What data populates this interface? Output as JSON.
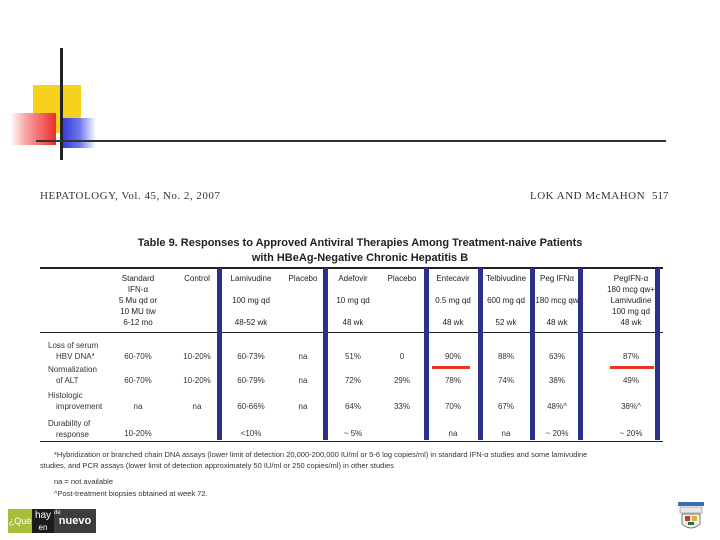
{
  "header": {
    "journal": "HEPATOLOGY, Vol. 45, No. 2, 2007",
    "authors": "LOK AND McMAHON",
    "page": "517"
  },
  "table": {
    "title_line1": "Table 9. Responses to Approved Antiviral Therapies Among Treatment-naive Patients",
    "title_line2": "with HBeAg-Negative Chronic Hepatitis B",
    "columns": [
      {
        "name": "Standard",
        "lines": [
          "IFN-α",
          "5 Mu qd or",
          "10 MU tiw",
          "6-12 mo"
        ]
      },
      {
        "name": "Control",
        "lines": []
      },
      {
        "name": "Lamivudine",
        "lines": [
          "100 mg qd",
          "48-52 wk"
        ]
      },
      {
        "name": "Placebo",
        "lines": []
      },
      {
        "name": "Adefovir",
        "lines": [
          "10 mg qd",
          "48 wk"
        ]
      },
      {
        "name": "Placebo",
        "lines": []
      },
      {
        "name": "Entecavir",
        "lines": [
          "0.5 mg qd",
          "48 wk"
        ]
      },
      {
        "name": "Telbivudine",
        "lines": [
          "600 mg qd",
          "52 wk"
        ]
      },
      {
        "name": "Peg IFNα",
        "lines": [
          "180 mcg qw",
          "48 wk"
        ]
      },
      {
        "name": "PegIFN-α",
        "lines": [
          "180 mcg qw+",
          "Lamivudine",
          "100 mg qd",
          "48 wk"
        ]
      }
    ],
    "rows": [
      {
        "label": [
          "Loss of serum",
          "HBV DNA*"
        ],
        "values": [
          "60-70%",
          "10-20%",
          "60-73%",
          "na",
          "51%",
          "0",
          "90%",
          "88%",
          "63%",
          "87%"
        ]
      },
      {
        "label": [
          "Normalization",
          "of ALT"
        ],
        "values": [
          "60-70%",
          "10-20%",
          "60-79%",
          "na",
          "72%",
          "29%",
          "78%",
          "74%",
          "38%",
          "49%"
        ]
      },
      {
        "label": [
          "Histologic",
          "improvement"
        ],
        "values": [
          "na",
          "na",
          "60-66%",
          "na",
          "64%",
          "33%",
          "70%",
          "67%",
          "48%^",
          "38%^"
        ]
      },
      {
        "label": [
          "Durability of",
          "response"
        ],
        "values": [
          "10-20%",
          "",
          "<10%",
          "",
          "~ 5%",
          "",
          "na",
          "na",
          "~ 20%",
          "~ 20%"
        ]
      }
    ],
    "footnotes": [
      "*Hybridization or branched chain DNA assays (lower limit of detection 20,000-200,000 IU/ml or 5-6 log copies/ml) in standard IFN-α studies and some lamivudine",
      "studies, and PCR assays (lower limit of detection approximately 50 IU/ml or 250 copies/ml) in other studies",
      "na = not available",
      "^Post-treatment biopsies obtained at week 72."
    ]
  },
  "logo": {
    "left": "¿Qué",
    "mid_top": "hay",
    "mid_bottom": "en",
    "right": "nuevo",
    "mid_sup": "de"
  },
  "colors": {
    "column_bar": "#2b2f8e",
    "highlight": "#e8341b",
    "yellow": "#f6d21c"
  }
}
